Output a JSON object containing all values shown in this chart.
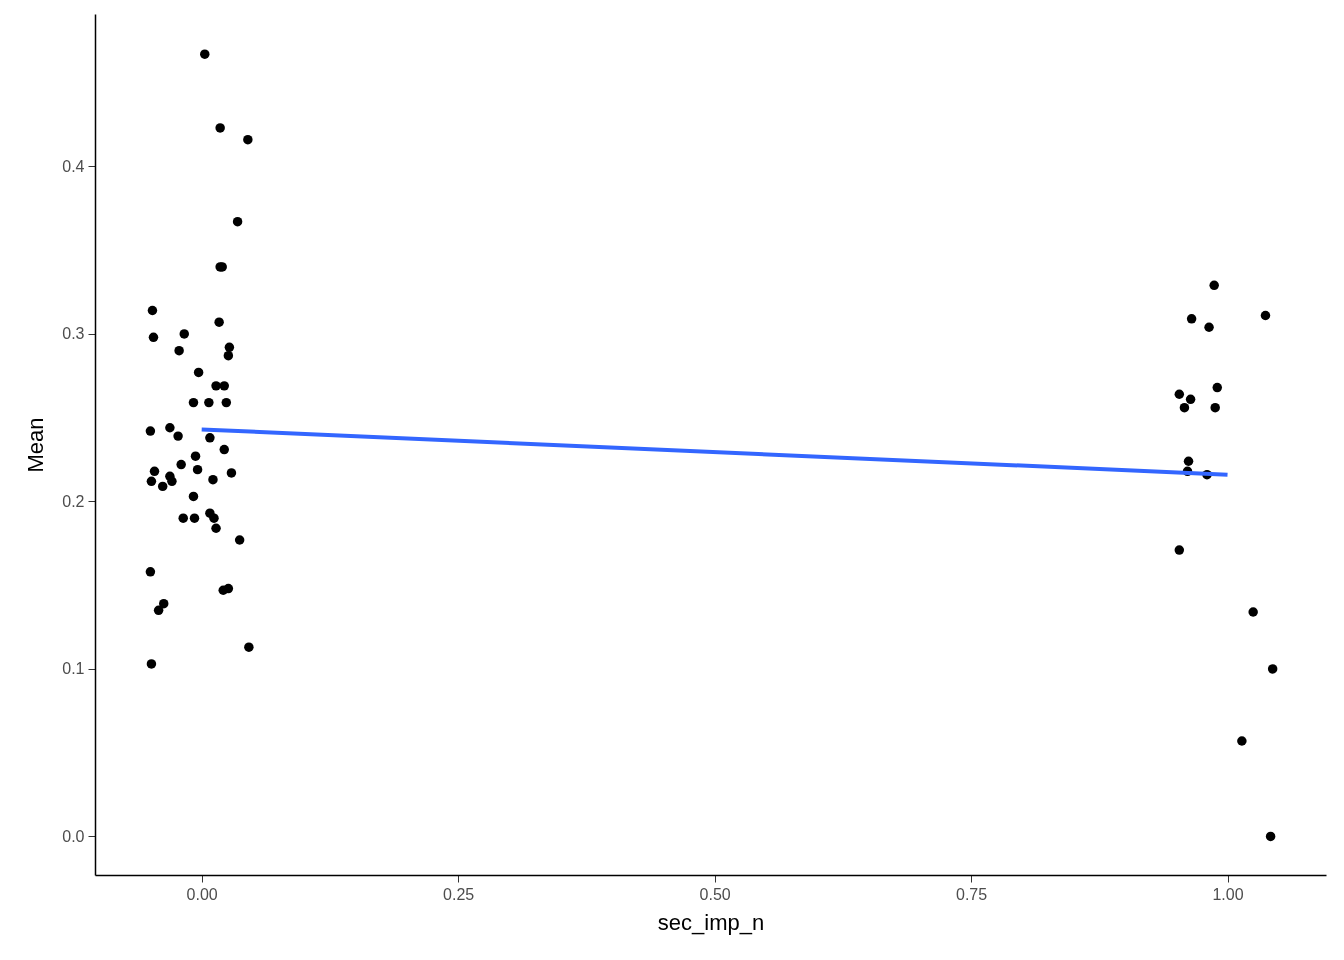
{
  "chart_data": {
    "type": "scatter",
    "xlabel": "sec_imp_n",
    "ylabel": "Mean",
    "xlim": [
      -0.104,
      1.096
    ],
    "ylim": [
      -0.023,
      0.491
    ],
    "xticks": [
      {
        "value": 0,
        "label": "0.00"
      },
      {
        "value": 0.25,
        "label": "0.25"
      },
      {
        "value": 0.5,
        "label": "0.50"
      },
      {
        "value": 0.75,
        "label": "0.75"
      },
      {
        "value": 1,
        "label": "1.00"
      }
    ],
    "yticks": [
      {
        "value": 0,
        "label": "0.0"
      },
      {
        "value": 0.1,
        "label": "0.1"
      },
      {
        "value": 0.2,
        "label": "0.2"
      },
      {
        "value": 0.3,
        "label": "0.3"
      },
      {
        "value": 0.4,
        "label": "0.4"
      }
    ],
    "grid": false,
    "series": [
      {
        "type": "scatter",
        "marker": "circle",
        "color": "#000000",
        "x": [
          0.003,
          0.018,
          0.045,
          0.035,
          0.018,
          0.02,
          -0.048,
          -0.047,
          -0.017,
          0.017,
          -0.022,
          0.027,
          0.026,
          -0.003,
          0.014,
          0.022,
          -0.008,
          0.007,
          0.024,
          -0.05,
          -0.031,
          -0.023,
          0.008,
          0.022,
          -0.006,
          -0.02,
          -0.046,
          -0.031,
          -0.029,
          -0.049,
          -0.038,
          -0.004,
          0.011,
          0.029,
          -0.008,
          -0.018,
          -0.007,
          0.008,
          0.012,
          0.014,
          0.037,
          -0.05,
          -0.037,
          -0.042,
          0.021,
          0.026,
          -0.049,
          0.046,
          0.987,
          1.037,
          0.965,
          0.982,
          0.99,
          0.953,
          0.964,
          0.958,
          0.988,
          0.962,
          0.961,
          0.98,
          0.953,
          1.025,
          1.044,
          1.014,
          1.042
        ],
        "values": [
          0.467,
          0.423,
          0.416,
          0.367,
          0.34,
          0.34,
          0.314,
          0.298,
          0.3,
          0.307,
          0.29,
          0.292,
          0.287,
          0.277,
          0.269,
          0.269,
          0.259,
          0.259,
          0.259,
          0.242,
          0.244,
          0.239,
          0.238,
          0.231,
          0.227,
          0.222,
          0.218,
          0.215,
          0.212,
          0.212,
          0.209,
          0.219,
          0.213,
          0.217,
          0.203,
          0.19,
          0.19,
          0.193,
          0.19,
          0.184,
          0.177,
          0.158,
          0.139,
          0.135,
          0.147,
          0.148,
          0.103,
          0.113,
          0.329,
          0.311,
          0.309,
          0.304,
          0.268,
          0.264,
          0.261,
          0.256,
          0.256,
          0.224,
          0.218,
          0.216,
          0.171,
          0.134,
          0.1,
          0.057,
          0.0
        ]
      },
      {
        "type": "line",
        "color": "#3366ff",
        "x": [
          0,
          1
        ],
        "values": [
          0.243,
          0.216
        ]
      }
    ]
  }
}
